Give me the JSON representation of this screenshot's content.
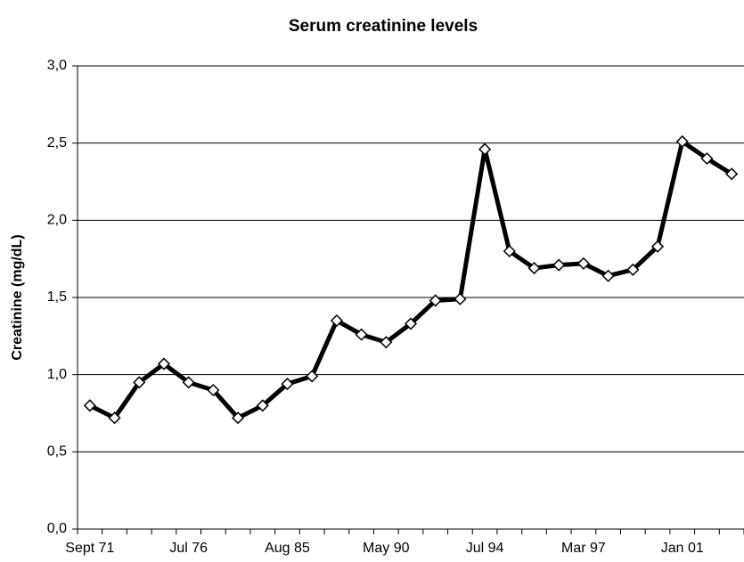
{
  "chart_data": {
    "type": "line",
    "title": "Serum creatinine levels",
    "y_label": "Creatinine (mg/dL)",
    "categories": [
      "Sept 71",
      null,
      null,
      null,
      "Jul 76",
      null,
      null,
      null,
      "Aug 85",
      null,
      null,
      null,
      "May 90",
      null,
      null,
      null,
      "Jul 94",
      null,
      null,
      null,
      "Mar 97",
      null,
      null,
      null,
      "Jan 01",
      null,
      null
    ],
    "values": [
      0.8,
      0.72,
      0.95,
      1.07,
      0.95,
      0.9,
      0.72,
      0.8,
      0.94,
      0.99,
      1.35,
      1.26,
      1.21,
      1.33,
      1.48,
      1.49,
      2.46,
      1.8,
      1.69,
      1.71,
      1.72,
      1.64,
      1.68,
      1.83,
      2.51,
      2.4,
      2.3
    ],
    "color": "#000000",
    "ylim": [
      0,
      3
    ],
    "yticks": [
      {
        "value": 0,
        "label": "0,0"
      },
      {
        "value": 0.5,
        "label": "0,5"
      },
      {
        "value": 1,
        "label": "1,0"
      },
      {
        "value": 1.5,
        "label": "1,5"
      },
      {
        "value": 2,
        "label": "2,0"
      },
      {
        "value": 2.5,
        "label": "2,5"
      },
      {
        "value": 3,
        "label": "3,0"
      }
    ],
    "grid": true
  }
}
